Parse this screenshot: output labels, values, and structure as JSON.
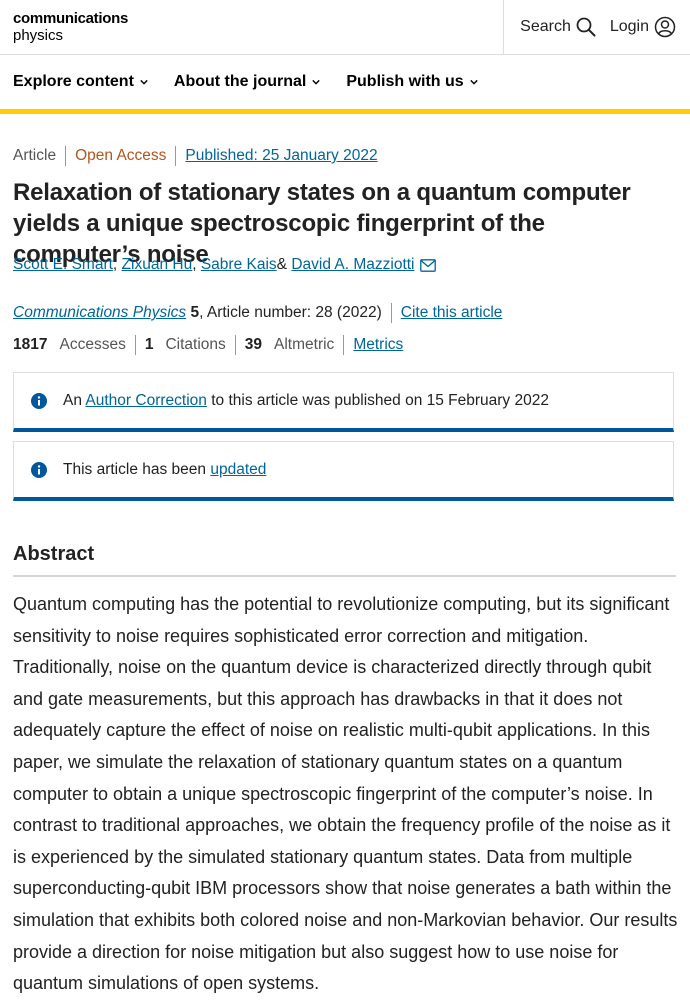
{
  "header": {
    "brand_line1": "communications",
    "brand_line2": "physics",
    "search_label": "Search",
    "login_label": "Login"
  },
  "nav": {
    "items": [
      {
        "label": "Explore content"
      },
      {
        "label": "About the journal"
      },
      {
        "label": "Publish with us"
      }
    ]
  },
  "article": {
    "type": "Article",
    "access": "Open Access",
    "published": "Published: 25 January 2022",
    "title": "Relaxation of stationary states on a quantum computer yields a unique spectroscopic fingerprint of the computer’s noise",
    "authors": [
      {
        "name": "Scott E. Smart",
        "after": ","
      },
      {
        "name": "Zixuan Hu",
        "after": ","
      },
      {
        "name": "Sabre Kais",
        "after": " &"
      },
      {
        "name": "David A. Mazziotti",
        "after": ""
      }
    ],
    "journal": "Communications Physics",
    "volume": "5",
    "article_number": ", Article number: 28 (2022)",
    "cite_label": "Cite this article",
    "metrics": {
      "accesses_value": "1817",
      "accesses_label": "Accesses",
      "citations_value": "1",
      "citations_label": "Citations",
      "altmetric_value": "39",
      "altmetric_label": "Altmetric",
      "metrics_link": "Metrics"
    }
  },
  "notices": {
    "correction_prefix": "An",
    "correction_link": "Author Correction",
    "correction_suffix": "to this article was published on 15 February 2022",
    "updated_prefix": "This article has been",
    "updated_link": "updated"
  },
  "abstract": {
    "heading": "Abstract",
    "text": "Quantum computing has the potential to revolutionize computing, but its significant sensitivity to noise requires sophisticated error correction and mitigation. Traditionally, noise on the quantum device is characterized directly through qubit and gate measurements, but this approach has drawbacks in that it does not adequately capture the effect of noise on realistic multi-qubit applications. In this paper, we simulate the relaxation of stationary quantum states on a quantum computer to obtain a unique spectroscopic fingerprint of the computer’s noise. In contrast to traditional approaches, we obtain the frequency profile of the noise as it is experienced by the simulated stationary quantum states. Data from multiple superconducting-qubit IBM processors show that noise generates a bath within the simulation that exhibits both colored noise and non-Markovian behavior. Our results provide a direction for noise mitigation but also suggest how to use noise for quantum simulations of open systems."
  },
  "colors": {
    "accent": "#ffcc00",
    "link": "#006699",
    "open_access": "#b3541e",
    "notice_border": "#01579b"
  },
  "icons": {
    "search": "search-icon",
    "login": "user-icon",
    "chevron": "chevron-down-icon",
    "mail": "envelope-icon",
    "info": "info-icon"
  }
}
